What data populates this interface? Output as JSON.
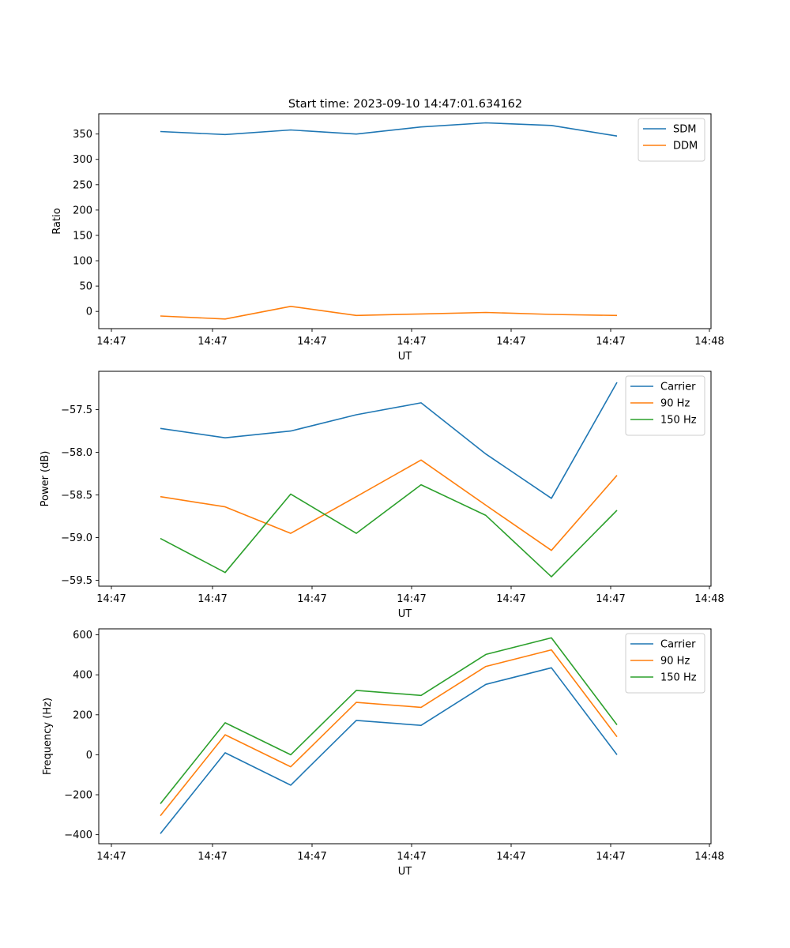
{
  "figure_title": "Start time: 2023-09-10 14:47:01.634162",
  "chart_data": [
    {
      "type": "line",
      "title": "Start time: 2023-09-10 14:47:01.634162",
      "xlabel": "UT",
      "ylabel": "Ratio",
      "x_tick_labels": [
        "14:47",
        "14:47",
        "14:47",
        "14:47",
        "14:47",
        "14:47",
        "14:48"
      ],
      "y_ticks": [
        0,
        50,
        100,
        150,
        200,
        250,
        300,
        350
      ],
      "y_tick_labels": [
        "0",
        "50",
        "100",
        "150",
        "200",
        "250",
        "300",
        "350"
      ],
      "ylim": [
        -34,
        390
      ],
      "legend": "upper-right",
      "series": [
        {
          "name": "SDM",
          "color": "#1f77b4",
          "values": [
            355,
            349,
            358,
            350,
            364,
            372,
            367,
            346
          ]
        },
        {
          "name": "DDM",
          "color": "#ff7f0e",
          "values": [
            -9,
            -15,
            10,
            -8,
            -5,
            -2,
            -6,
            -8
          ]
        }
      ]
    },
    {
      "type": "line",
      "title": "",
      "xlabel": "UT",
      "ylabel": "Power (dB)",
      "x_tick_labels": [
        "14:47",
        "14:47",
        "14:47",
        "14:47",
        "14:47",
        "14:47",
        "14:48"
      ],
      "y_ticks": [
        -59.5,
        -59.0,
        -58.5,
        -58.0,
        -57.5
      ],
      "y_tick_labels": [
        "−59.5",
        "−59.0",
        "−58.5",
        "−58.0",
        "−57.5"
      ],
      "ylim": [
        -59.57,
        -57.05
      ],
      "legend": "upper-right",
      "series": [
        {
          "name": "Carrier",
          "color": "#1f77b4",
          "values": [
            -57.72,
            -57.83,
            -57.75,
            -57.56,
            -57.42,
            -58.02,
            -58.54,
            -57.18
          ]
        },
        {
          "name": "90 Hz",
          "color": "#ff7f0e",
          "values": [
            -58.52,
            -58.64,
            -58.95,
            -58.52,
            -58.09,
            -58.62,
            -59.15,
            -58.27
          ]
        },
        {
          "name": "150 Hz",
          "color": "#2ca02c",
          "values": [
            -59.01,
            -59.41,
            -58.49,
            -58.95,
            -58.38,
            -58.74,
            -59.46,
            -58.68
          ]
        }
      ]
    },
    {
      "type": "line",
      "title": "",
      "xlabel": "UT",
      "ylabel": "Frequency (Hz)",
      "x_tick_labels": [
        "14:47",
        "14:47",
        "14:47",
        "14:47",
        "14:47",
        "14:47",
        "14:48"
      ],
      "y_ticks": [
        -400,
        -200,
        0,
        200,
        400,
        600
      ],
      "y_tick_labels": [
        "−400",
        "−200",
        "0",
        "200",
        "400",
        "600"
      ],
      "ylim": [
        -445,
        630
      ],
      "legend": "upper-right",
      "series": [
        {
          "name": "Carrier",
          "color": "#1f77b4",
          "values": [
            -395,
            10,
            -152,
            172,
            147,
            352,
            435,
            0
          ]
        },
        {
          "name": "90 Hz",
          "color": "#ff7f0e",
          "values": [
            -305,
            100,
            -60,
            262,
            237,
            442,
            525,
            90
          ]
        },
        {
          "name": "150 Hz",
          "color": "#2ca02c",
          "values": [
            -245,
            160,
            0,
            322,
            297,
            502,
            585,
            150
          ]
        }
      ]
    }
  ]
}
